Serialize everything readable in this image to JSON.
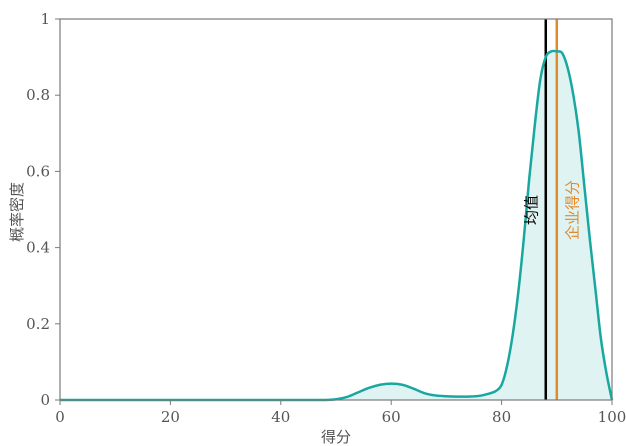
{
  "chart_data": {
    "type": "area",
    "title": "",
    "xlabel": "得分",
    "ylabel": "概率密度",
    "xlim": [
      0,
      100
    ],
    "ylim": [
      0,
      1
    ],
    "xticks": [
      0,
      20,
      40,
      60,
      80,
      100
    ],
    "yticks": [
      0,
      0.2,
      0.4,
      0.6,
      0.8,
      1
    ],
    "ytick_labels": [
      "0",
      "0.2",
      "0.4",
      "0.6",
      "0.8",
      "1"
    ],
    "grid": false,
    "series": [
      {
        "x": [
          0,
          10,
          20,
          30,
          40,
          48,
          50,
          52,
          54,
          56,
          58,
          60,
          62,
          64,
          66,
          68,
          70,
          72,
          74,
          76,
          78,
          79,
          80,
          81,
          82,
          83,
          84,
          85,
          86,
          87,
          88,
          89,
          90,
          91,
          92,
          93,
          94,
          95,
          96,
          97,
          98,
          99,
          100
        ],
        "y": [
          0,
          0,
          0,
          0,
          0,
          0,
          0.002,
          0.008,
          0.02,
          0.032,
          0.04,
          0.043,
          0.04,
          0.03,
          0.018,
          0.012,
          0.01,
          0.009,
          0.009,
          0.011,
          0.018,
          0.024,
          0.04,
          0.09,
          0.17,
          0.28,
          0.42,
          0.58,
          0.72,
          0.84,
          0.9,
          0.915,
          0.915,
          0.91,
          0.87,
          0.8,
          0.7,
          0.56,
          0.42,
          0.29,
          0.16,
          0.07,
          0
        ],
        "color": "#18a8a0",
        "fill": "#dff3f2"
      }
    ],
    "vlines": [
      {
        "x": 88,
        "label": "均值",
        "color": "#000000"
      },
      {
        "x": 90,
        "label": "企业得分",
        "color": "#e08a2e"
      }
    ]
  }
}
